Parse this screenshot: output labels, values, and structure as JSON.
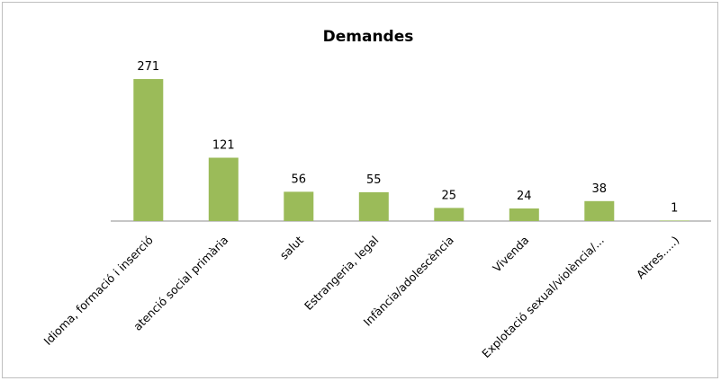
{
  "chart_data": {
    "type": "bar",
    "title": "Demandes",
    "categories": [
      "Idioma, formació i inserció",
      "atenció social primària",
      "salut",
      "Estrangeria, legal",
      "Infància/adolescència",
      "Vivenda",
      "Explotació sexual/violència/...",
      "Altres.....)"
    ],
    "values": [
      271,
      121,
      56,
      55,
      25,
      24,
      38,
      1
    ],
    "data_labels": [
      "271",
      "121",
      "56",
      "55",
      "25",
      "24",
      "38",
      "1"
    ],
    "bar_color": "#9bbb59",
    "xlabel": "",
    "ylabel": "",
    "ylim": [
      0,
      271
    ],
    "grid": false,
    "legend": "none"
  }
}
